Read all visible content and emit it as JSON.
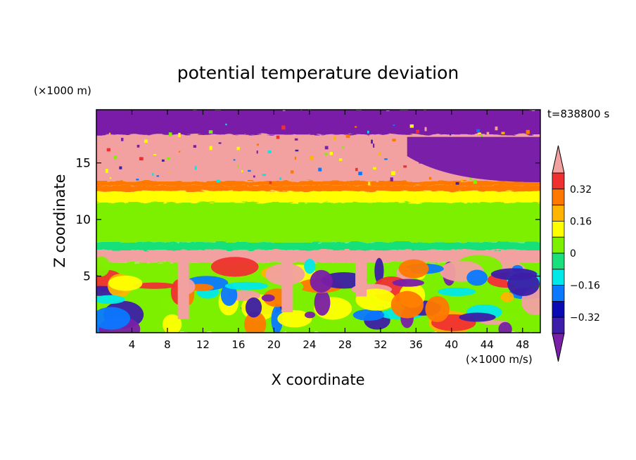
{
  "chart_data": {
    "type": "heatmap",
    "title": "potential temperature deviation",
    "xlabel": "X coordinate",
    "ylabel": "Z coordinate",
    "x_unit": "(×1000 m/s)",
    "y_unit": "(×1000 m)",
    "time_label": "t=838800 s",
    "xlim": [
      0,
      50
    ],
    "ylim": [
      0,
      19.7
    ],
    "x_ticks": [
      "4",
      "8",
      "12",
      "16",
      "20",
      "24",
      "28",
      "32",
      "36",
      "40",
      "44",
      "48"
    ],
    "y_ticks": [
      "5",
      "10",
      "15"
    ],
    "x_tick_values": [
      4,
      8,
      12,
      16,
      20,
      24,
      28,
      32,
      36,
      40,
      44,
      48
    ],
    "y_tick_values": [
      5,
      10,
      15
    ],
    "colorbar": {
      "levels": [
        -0.4,
        -0.32,
        -0.24,
        -0.16,
        -0.08,
        0,
        0.08,
        0.16,
        0.24,
        0.32,
        0.4
      ],
      "labels": [
        "0.32",
        "0.16",
        "0",
        "−0.16",
        "−0.32"
      ],
      "label_values": [
        0.32,
        0.16,
        0,
        -0.16,
        -0.32
      ],
      "colors_low_to_high": [
        "#7a1fa8",
        "#3d1ea8",
        "#0a0ab4",
        "#0a78ff",
        "#00e8e8",
        "#19e07a",
        "#7df000",
        "#ffff00",
        "#ffb400",
        "#ff7800",
        "#f03030",
        "#f2a0a0"
      ],
      "extend": "both"
    },
    "bands": [
      {
        "value": -0.45,
        "z": [
          17.5,
          19.7
        ],
        "note": "upper layer"
      },
      {
        "value": 0.45,
        "z": [
          13.4,
          17.5
        ]
      },
      {
        "value": 0.3,
        "z": [
          13.0,
          13.4
        ]
      },
      {
        "value": 0.24,
        "z": [
          12.5,
          13.0
        ]
      },
      {
        "value": 0.1,
        "z": [
          11.5,
          12.5
        ]
      },
      {
        "value": 0.05,
        "z": [
          8.0,
          11.5
        ]
      },
      {
        "value": -0.04,
        "z": [
          7.3,
          8.0
        ]
      },
      {
        "value": 0.45,
        "z": [
          6.2,
          7.3
        ]
      },
      {
        "value": 0.0,
        "z": [
          0,
          6.2
        ],
        "note": "turbulent lower layer"
      }
    ]
  }
}
